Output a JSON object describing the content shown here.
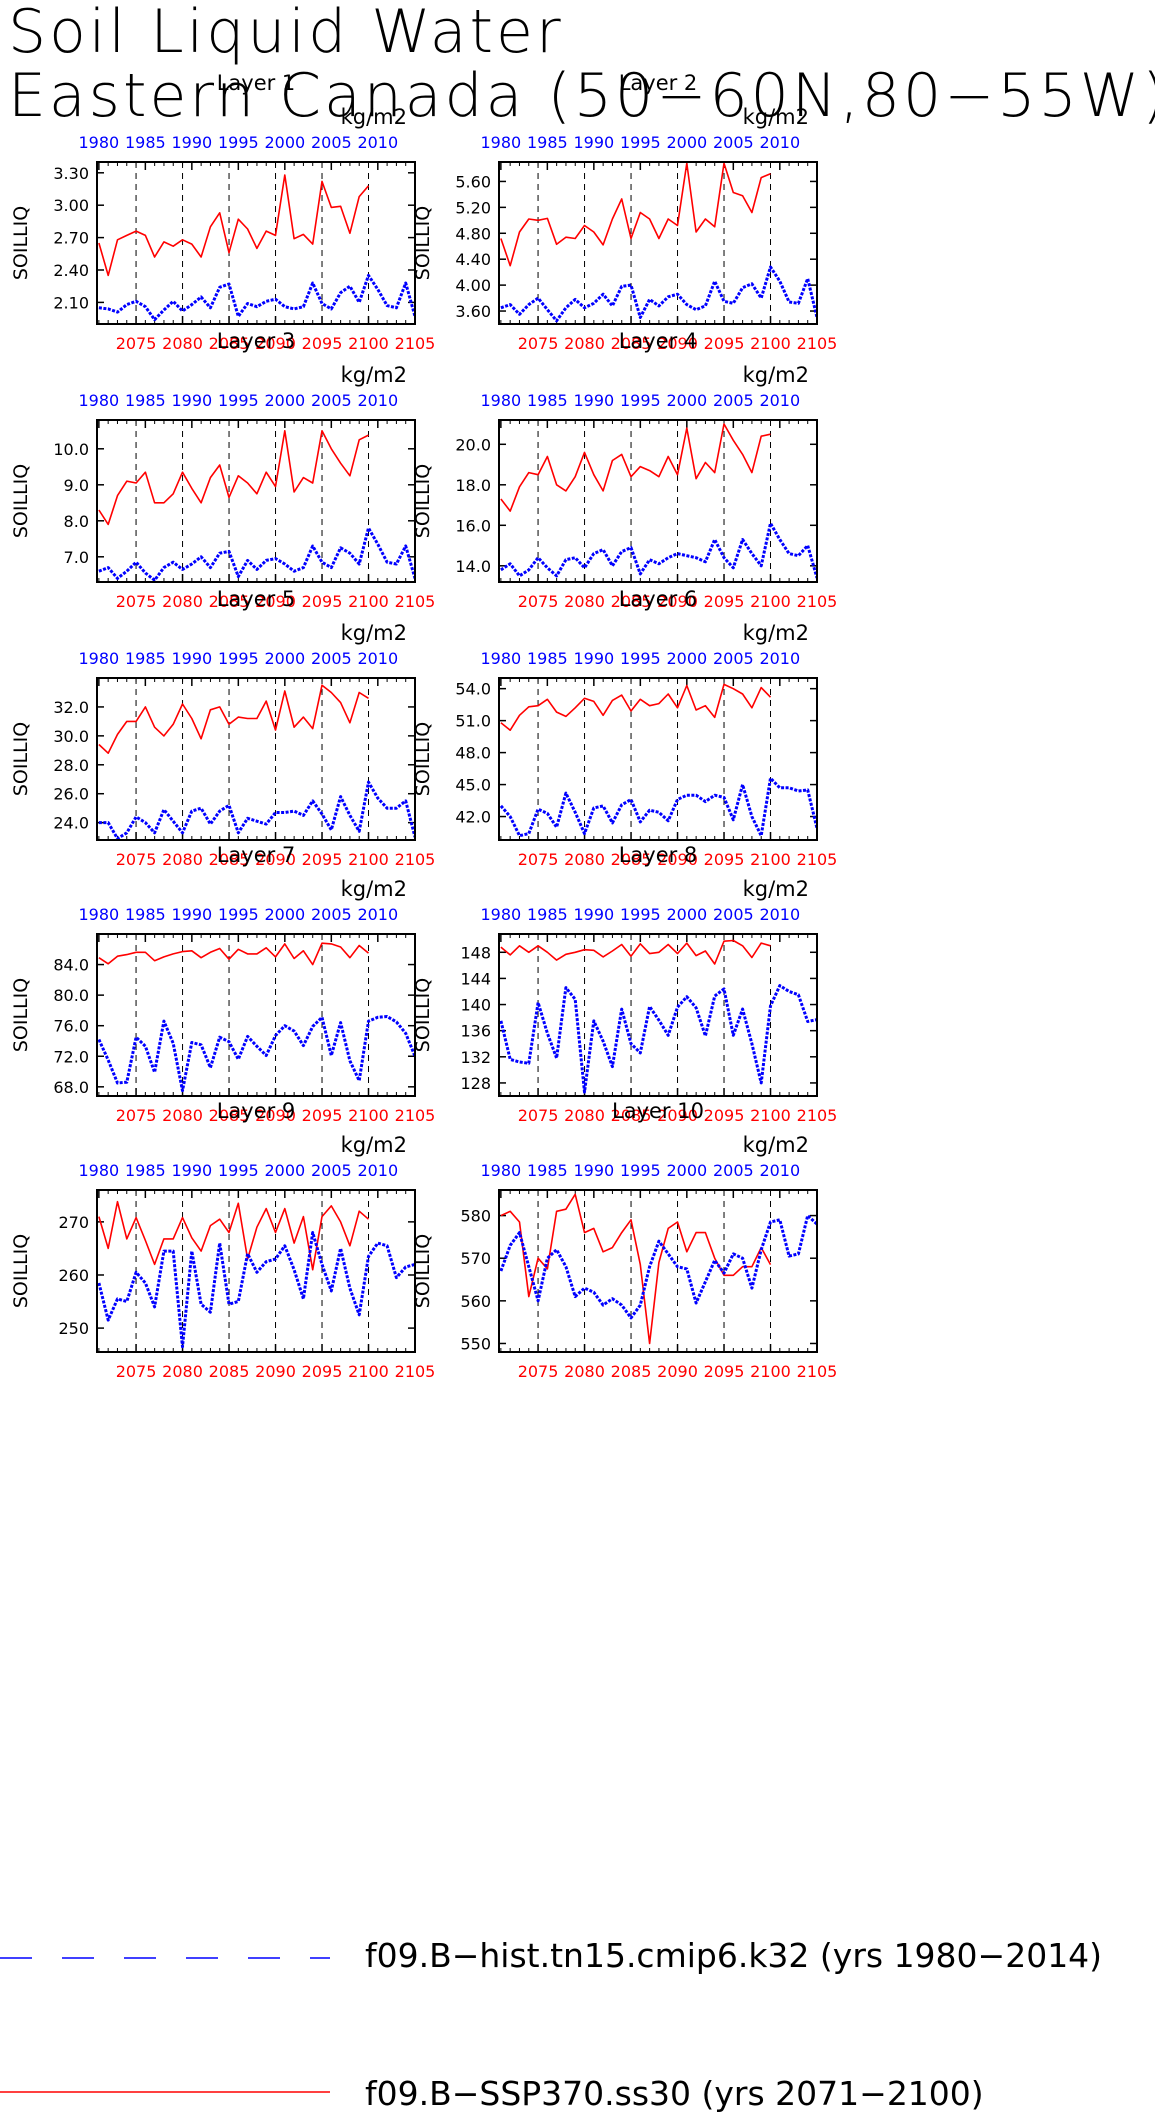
{
  "title_lines": [
    "Soil Liquid Water",
    "Eastern Canada (50−60N,80−55W)"
  ],
  "units": "kg/m2",
  "ylabel": "SOILLIQ",
  "colors": {
    "historical": "#0000ff",
    "future": "#ff0000",
    "dashes": "#000000"
  },
  "top_axis_ticks": [
    "1980",
    "1985",
    "1990",
    "1995",
    "2000",
    "2005",
    "2010"
  ],
  "bottom_axis_ticks": [
    "2075",
    "2080",
    "2085",
    "2090",
    "2095",
    "2100",
    "2105"
  ],
  "legend": [
    {
      "label": "f09.B−hist.tn15.cmip6.k32 (yrs 1980−2014)",
      "style": "dashed",
      "color": "#0000ff"
    },
    {
      "label": "f09.B−SSP370.ss30 (yrs 2071−2100)",
      "style": "solid",
      "color": "#ff0000"
    }
  ],
  "chart_data": [
    {
      "type": "line",
      "title": "Layer 1",
      "ylim": [
        1.9,
        3.4
      ],
      "yticks": [
        2.1,
        2.4,
        2.7,
        3.0,
        3.3
      ],
      "ytick_labels": [
        "2.10",
        "2.40",
        "2.70",
        "3.00",
        "3.30"
      ],
      "series": [
        {
          "name": "f09.B−SSP370.ss30 (yrs 2071−2100)",
          "x_start": 2071,
          "values": [
            2.65,
            2.35,
            2.68,
            2.72,
            2.76,
            2.72,
            2.52,
            2.66,
            2.62,
            2.68,
            2.64,
            2.52,
            2.8,
            2.93,
            2.56,
            2.87,
            2.78,
            2.6,
            2.76,
            2.72,
            3.28,
            2.69,
            2.73,
            2.64,
            3.22,
            2.98,
            2.99,
            2.74,
            3.08,
            3.18
          ]
        },
        {
          "name": "f09.B−hist.tn15.cmip6.k32 (yrs 1980−2014)",
          "x_start": 1980,
          "values": [
            2.05,
            2.04,
            2.01,
            2.08,
            2.11,
            2.06,
            1.94,
            2.03,
            2.11,
            2.02,
            2.08,
            2.15,
            2.05,
            2.24,
            2.27,
            1.97,
            2.09,
            2.06,
            2.11,
            2.13,
            2.06,
            2.04,
            2.06,
            2.28,
            2.09,
            2.04,
            2.19,
            2.25,
            2.1,
            2.35,
            2.22,
            2.07,
            2.05,
            2.28,
            1.97
          ]
        }
      ]
    },
    {
      "type": "line",
      "title": "Layer 2",
      "ylim": [
        3.4,
        5.9
      ],
      "yticks": [
        3.6,
        4.0,
        4.4,
        4.8,
        5.2,
        5.6
      ],
      "ytick_labels": [
        "3.60",
        "4.00",
        "4.40",
        "4.80",
        "5.20",
        "5.60"
      ],
      "series": [
        {
          "name": "f09.B−SSP370.ss30 (yrs 2071−2100)",
          "x_start": 2071,
          "values": [
            4.72,
            4.3,
            4.82,
            5.02,
            5.0,
            5.03,
            4.63,
            4.74,
            4.72,
            4.92,
            4.82,
            4.62,
            5.02,
            5.33,
            4.72,
            5.12,
            5.02,
            4.72,
            5.02,
            4.92,
            5.88,
            4.82,
            5.02,
            4.9,
            5.88,
            5.43,
            5.38,
            5.12,
            5.66,
            5.72
          ]
        },
        {
          "name": "f09.B−hist.tn15.cmip6.k32 (yrs 1980−2014)",
          "x_start": 1980,
          "values": [
            3.65,
            3.7,
            3.55,
            3.7,
            3.8,
            3.62,
            3.45,
            3.65,
            3.78,
            3.65,
            3.72,
            3.86,
            3.68,
            3.98,
            4.0,
            3.5,
            3.78,
            3.68,
            3.82,
            3.86,
            3.7,
            3.62,
            3.68,
            4.06,
            3.75,
            3.72,
            3.96,
            4.02,
            3.8,
            4.28,
            4.06,
            3.74,
            3.72,
            4.1,
            3.5
          ]
        }
      ]
    },
    {
      "type": "line",
      "title": "Layer 3",
      "ylim": [
        6.3,
        10.8
      ],
      "yticks": [
        7.0,
        8.0,
        9.0,
        10.0
      ],
      "ytick_labels": [
        "7.0",
        "8.0",
        "9.0",
        "10.0"
      ],
      "series": [
        {
          "name": "f09.B−SSP370.ss30 (yrs 2071−2100)",
          "x_start": 2071,
          "values": [
            8.3,
            7.9,
            8.7,
            9.1,
            9.05,
            9.35,
            8.5,
            8.5,
            8.75,
            9.35,
            8.9,
            8.5,
            9.2,
            9.55,
            8.65,
            9.25,
            9.05,
            8.75,
            9.35,
            8.95,
            10.5,
            8.8,
            9.2,
            9.05,
            10.5,
            10.0,
            9.6,
            9.25,
            10.25,
            10.38
          ]
        },
        {
          "name": "f09.B−hist.tn15.cmip6.k32 (yrs 1980−2014)",
          "x_start": 1980,
          "values": [
            6.6,
            6.7,
            6.4,
            6.6,
            6.85,
            6.55,
            6.35,
            6.7,
            6.85,
            6.65,
            6.8,
            7.0,
            6.7,
            7.1,
            7.15,
            6.45,
            6.9,
            6.65,
            6.9,
            6.95,
            6.8,
            6.6,
            6.7,
            7.3,
            6.85,
            6.7,
            7.25,
            7.1,
            6.8,
            7.8,
            7.35,
            6.85,
            6.8,
            7.3,
            6.4
          ]
        }
      ]
    },
    {
      "type": "line",
      "title": "Layer 4",
      "ylim": [
        13.2,
        21.2
      ],
      "yticks": [
        14.0,
        16.0,
        18.0,
        20.0
      ],
      "ytick_labels": [
        "14.0",
        "16.0",
        "18.0",
        "20.0"
      ],
      "series": [
        {
          "name": "f09.B−SSP370.ss30 (yrs 2071−2100)",
          "x_start": 2071,
          "values": [
            17.3,
            16.7,
            17.9,
            18.6,
            18.5,
            19.4,
            18.0,
            17.7,
            18.4,
            19.6,
            18.5,
            17.7,
            19.2,
            19.5,
            18.4,
            18.9,
            18.7,
            18.4,
            19.4,
            18.5,
            20.8,
            18.3,
            19.1,
            18.6,
            21.0,
            20.2,
            19.5,
            18.6,
            20.4,
            20.5
          ]
        },
        {
          "name": "f09.B−hist.tn15.cmip6.k32 (yrs 1980−2014)",
          "x_start": 1980,
          "values": [
            13.8,
            14.1,
            13.5,
            13.8,
            14.4,
            13.9,
            13.5,
            14.3,
            14.4,
            13.9,
            14.6,
            14.8,
            14.0,
            14.7,
            14.9,
            13.6,
            14.3,
            14.1,
            14.4,
            14.6,
            14.5,
            14.4,
            14.2,
            15.3,
            14.4,
            13.9,
            15.3,
            14.6,
            14.0,
            16.1,
            15.3,
            14.6,
            14.5,
            15.0,
            13.4
          ]
        }
      ]
    },
    {
      "type": "line",
      "title": "Layer 5",
      "ylim": [
        22.8,
        34.0
      ],
      "yticks": [
        24.0,
        26.0,
        28.0,
        30.0,
        32.0
      ],
      "ytick_labels": [
        "24.0",
        "26.0",
        "28.0",
        "30.0",
        "32.0"
      ],
      "series": [
        {
          "name": "f09.B−SSP370.ss30 (yrs 2071−2100)",
          "x_start": 2071,
          "values": [
            29.4,
            28.8,
            30.1,
            31.0,
            31.0,
            32.0,
            30.6,
            30.0,
            30.8,
            32.2,
            31.2,
            29.8,
            31.8,
            32.0,
            30.8,
            31.3,
            31.2,
            31.2,
            32.4,
            30.4,
            33.1,
            30.6,
            31.3,
            30.5,
            33.5,
            33.0,
            32.3,
            30.9,
            33.0,
            32.6
          ]
        },
        {
          "name": "f09.B−hist.tn15.cmip6.k32 (yrs 1980−2014)",
          "x_start": 1980,
          "values": [
            24.0,
            24.0,
            22.9,
            23.3,
            24.4,
            24.0,
            23.3,
            24.9,
            24.1,
            23.3,
            24.8,
            25.0,
            23.9,
            24.8,
            25.2,
            23.3,
            24.3,
            24.1,
            23.9,
            24.7,
            24.7,
            24.8,
            24.5,
            25.5,
            24.6,
            23.5,
            25.8,
            24.5,
            23.4,
            26.8,
            25.7,
            25.0,
            25.0,
            25.5,
            23.0
          ]
        }
      ]
    },
    {
      "type": "line",
      "title": "Layer 6",
      "ylim": [
        39.8,
        55.0
      ],
      "yticks": [
        42.0,
        45.0,
        48.0,
        51.0,
        54.0
      ],
      "ytick_labels": [
        "42.0",
        "45.0",
        "48.0",
        "51.0",
        "54.0"
      ],
      "series": [
        {
          "name": "f09.B−SSP370.ss30 (yrs 2071−2100)",
          "x_start": 2071,
          "values": [
            50.8,
            50.1,
            51.5,
            52.3,
            52.4,
            53.0,
            51.8,
            51.4,
            52.2,
            53.1,
            52.8,
            51.5,
            52.9,
            53.4,
            51.9,
            53.0,
            52.4,
            52.6,
            53.5,
            52.2,
            54.3,
            52.0,
            52.4,
            51.3,
            54.4,
            54.0,
            53.5,
            52.2,
            54.1,
            53.2
          ]
        },
        {
          "name": "f09.B−hist.tn15.cmip6.k32 (yrs 1980−2014)",
          "x_start": 1980,
          "values": [
            43.0,
            42.0,
            40.2,
            40.4,
            42.7,
            42.3,
            41.0,
            44.2,
            42.4,
            40.4,
            42.8,
            43.0,
            41.4,
            43.1,
            43.6,
            41.5,
            42.6,
            42.4,
            41.6,
            43.6,
            44.0,
            44.0,
            43.4,
            44.0,
            43.8,
            41.7,
            45.0,
            42.0,
            40.2,
            45.6,
            44.7,
            44.7,
            44.4,
            44.5,
            40.9
          ]
        }
      ]
    },
    {
      "type": "line",
      "title": "Layer 7",
      "ylim": [
        66.8,
        88.0
      ],
      "yticks": [
        68.0,
        72.0,
        76.0,
        80.0,
        84.0
      ],
      "ytick_labels": [
        "68.0",
        "72.0",
        "76.0",
        "80.0",
        "84.0"
      ],
      "series": [
        {
          "name": "f09.B−SSP370.ss30 (yrs 2071−2100)",
          "x_start": 2071,
          "values": [
            84.9,
            84.1,
            85.1,
            85.3,
            85.6,
            85.6,
            84.5,
            85.0,
            85.4,
            85.7,
            85.8,
            84.9,
            85.6,
            86.1,
            84.7,
            86.0,
            85.4,
            85.4,
            86.2,
            85.0,
            86.7,
            84.8,
            85.8,
            84.0,
            86.8,
            86.7,
            86.3,
            84.9,
            86.5,
            85.5
          ]
        },
        {
          "name": "f09.B−hist.tn15.cmip6.k32 (yrs 1980−2014)",
          "x_start": 1980,
          "values": [
            74.2,
            71.5,
            68.5,
            68.6,
            74.5,
            73.3,
            69.9,
            76.6,
            73.7,
            67.5,
            73.8,
            73.5,
            70.5,
            74.5,
            73.9,
            71.6,
            74.6,
            73.3,
            72.1,
            74.7,
            76.0,
            75.3,
            73.4,
            75.9,
            77.1,
            72.1,
            76.4,
            71.4,
            68.8,
            76.6,
            77.1,
            77.2,
            76.5,
            75.0,
            72.0
          ]
        }
      ]
    },
    {
      "type": "line",
      "title": "Layer 8",
      "ylim": [
        126.0,
        150.8
      ],
      "yticks": [
        128,
        132,
        136,
        140,
        144,
        148
      ],
      "ytick_labels": [
        "128",
        "132",
        "136",
        "140",
        "144",
        "148"
      ],
      "series": [
        {
          "name": "f09.B−SSP370.ss30 (yrs 2071−2100)",
          "x_start": 2071,
          "values": [
            148.8,
            147.6,
            149.0,
            148.0,
            149.0,
            148.0,
            146.8,
            147.7,
            148.0,
            148.4,
            148.3,
            147.3,
            148.2,
            149.2,
            147.4,
            149.3,
            147.8,
            148.0,
            149.2,
            147.8,
            149.4,
            147.5,
            148.2,
            146.2,
            149.7,
            149.8,
            149.0,
            147.2,
            149.4,
            149.0
          ]
        },
        {
          "name": "f09.B−hist.tn15.cmip6.k32 (yrs 1980−2014)",
          "x_start": 1980,
          "values": [
            137.5,
            131.6,
            131.2,
            131.0,
            140.3,
            135.6,
            131.8,
            142.6,
            140.8,
            126.6,
            137.5,
            134.4,
            130.5,
            139.3,
            134.0,
            132.6,
            139.7,
            137.6,
            135.3,
            139.6,
            141.2,
            139.5,
            135.2,
            141.3,
            142.4,
            135.3,
            139.3,
            134.0,
            128.0,
            139.8,
            142.9,
            142.0,
            141.5,
            137.4,
            137.7
          ]
        }
      ]
    },
    {
      "type": "line",
      "title": "Layer 9",
      "ylim": [
        245.5,
        276.0
      ],
      "yticks": [
        250,
        260,
        270
      ],
      "ytick_labels": [
        "250",
        "260",
        "270"
      ],
      "series": [
        {
          "name": "f09.B−SSP370.ss30 (yrs 2071−2100)",
          "x_start": 2071,
          "values": [
            271.0,
            265.0,
            273.8,
            266.8,
            270.8,
            266.5,
            262.0,
            266.8,
            266.8,
            270.8,
            267.0,
            264.5,
            269.3,
            270.5,
            268.0,
            273.5,
            263.0,
            269.0,
            272.5,
            268.0,
            272.5,
            266.0,
            271.0,
            261.0,
            271.0,
            273.0,
            270.0,
            265.5,
            272.0,
            270.5
          ]
        },
        {
          "name": "f09.B−hist.tn15.cmip6.k32 (yrs 1980−2014)",
          "x_start": 1980,
          "values": [
            258.5,
            251.5,
            255.5,
            255.0,
            260.5,
            258.5,
            254.0,
            264.5,
            264.5,
            246.5,
            264.5,
            254.5,
            253.0,
            266.0,
            254.5,
            255.0,
            264.0,
            260.5,
            262.5,
            263.0,
            265.5,
            261.0,
            255.5,
            268.0,
            262.0,
            257.0,
            265.0,
            257.5,
            252.5,
            263.5,
            266.0,
            265.5,
            259.5,
            261.5,
            262.0
          ]
        }
      ]
    },
    {
      "type": "line",
      "title": "Layer 10",
      "ylim": [
        548.0,
        586.0
      ],
      "yticks": [
        550,
        560,
        570,
        580
      ],
      "ytick_labels": [
        "550",
        "560",
        "570",
        "580"
      ],
      "series": [
        {
          "name": "f09.B−SSP370.ss30 (yrs 2071−2100)",
          "x_start": 2071,
          "values": [
            580.0,
            581.0,
            578.5,
            561.0,
            570.0,
            567.5,
            581.0,
            581.5,
            585.0,
            576.0,
            577.0,
            571.5,
            572.5,
            576.0,
            579.0,
            568.5,
            550.0,
            569.0,
            577.0,
            578.5,
            571.5,
            576.0,
            576.0,
            570.0,
            566.0,
            566.0,
            568.0,
            568.0,
            572.5,
            568.5
          ]
        },
        {
          "name": "f09.B−hist.tn15.cmip6.k32 (yrs 1980−2014)",
          "x_start": 1980,
          "values": [
            567.0,
            573.0,
            576.0,
            568.0,
            560.0,
            570.0,
            572.0,
            568.0,
            561.0,
            563.0,
            562.0,
            559.0,
            560.5,
            559.0,
            556.0,
            559.0,
            568.0,
            574.0,
            571.0,
            568.0,
            567.5,
            559.5,
            564.5,
            569.5,
            566.5,
            571.0,
            570.0,
            563.0,
            572.0,
            578.5,
            579.0,
            570.5,
            571.0,
            580.0,
            578.0
          ]
        }
      ]
    }
  ]
}
